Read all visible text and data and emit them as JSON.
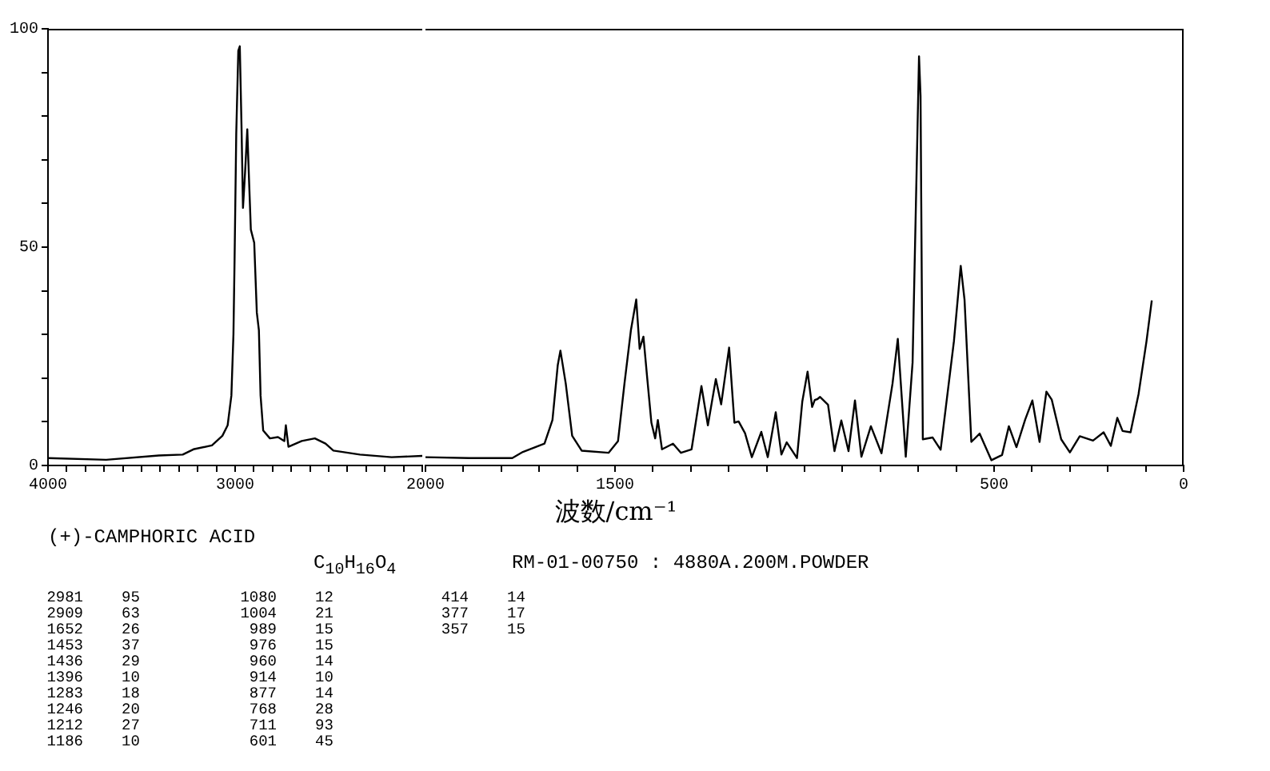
{
  "chart_data": [
    {
      "type": "line",
      "title": "(+)-CAMPHORIC ACID",
      "subtitle": "C$_{10}$H$_{16}$O$_{4}$",
      "annotations": [
        "RM-01-00750 : 4880A.200M.POWDER",
        "2981 95",
        "2909 63",
        "1652 26",
        "1453 37",
        "1436 29",
        "1396 10",
        "1283 18",
        "1246 20",
        "1212 27",
        "1186 10",
        "1080 12",
        "1004 21",
        "989 15",
        "976 15",
        "960 14",
        "914 10",
        "877 14",
        "768 28",
        "711 93",
        "601 45",
        "414 14",
        "377 17",
        "357 15"
      ],
      "xlim": [
        4000,
        2000
      ],
      "xticks": [
        4000,
        {
          "value": 3900,
          "label": null
        },
        {
          "value": 3800,
          "label": null
        },
        {
          "value": 3700,
          "label": null
        },
        {
          "value": 3600,
          "label": null
        },
        {
          "value": 3500,
          "label": null
        },
        {
          "value": 3400,
          "label": null
        },
        {
          "value": 3300,
          "label": null
        },
        {
          "value": 3200,
          "label": null
        },
        {
          "value": 3100,
          "label": null
        },
        3000,
        {
          "value": 2900,
          "label": null
        },
        {
          "value": 2800,
          "label": null
        },
        {
          "value": 2700,
          "label": null
        },
        {
          "value": 2600,
          "label": null
        },
        {
          "value": 2500,
          "label": null
        },
        {
          "value": 2400,
          "label": null
        },
        {
          "value": 2300,
          "label": null
        },
        {
          "value": 2200,
          "label": null
        },
        {
          "value": 2100,
          "label": null
        },
        {
          "value": 2000,
          "label": null
        }
      ],
      "ylim": [
        0,
        100
      ],
      "yticks": [
        0,
        {
          "value": 10,
          "label": null
        },
        {
          "value": 20,
          "label": null
        },
        {
          "value": 30,
          "label": null
        },
        {
          "value": 40,
          "label": null
        },
        50,
        {
          "value": 60,
          "label": null
        },
        {
          "value": 70,
          "label": null
        },
        {
          "value": 80,
          "label": null
        },
        {
          "value": 90,
          "label": null
        },
        100
      ],
      "grid": false,
      "legend": false,
      "marker": "none",
      "line_style": "solid",
      "series": [
        {
          "color": "#000000",
          "x": [
            4000,
            3689,
            3407,
            3280,
            3223,
            3124,
            3068,
            3040,
            3020,
            3009,
            3003,
            2994,
            2983,
            2975,
            2966,
            2958,
            2947,
            2935,
            2927,
            2916,
            2898,
            2884,
            2873,
            2864,
            2850,
            2814,
            2771,
            2737,
            2729,
            2715,
            2644,
            2574,
            2517,
            2475,
            2333,
            2164,
            2000
          ],
          "values": [
            1.7,
            1.3,
            2.3,
            2.5,
            3.7,
            4.6,
            6.8,
            9.2,
            16,
            30,
            47,
            76,
            95,
            96,
            78,
            59,
            67,
            77,
            67,
            54,
            51,
            35,
            31,
            16,
            8,
            6.2,
            6.5,
            5.6,
            9.2,
            4.3,
            5.6,
            6.2,
            5,
            3.4,
            2.5,
            1.9,
            2.2
          ]
        }
      ]
    },
    {
      "type": "line",
      "xlabel": "波数/cm⁻¹",
      "xlim": [
        2000,
        0
      ],
      "xticks": [
        2000,
        {
          "value": 1900,
          "label": null
        },
        {
          "value": 1800,
          "label": null
        },
        {
          "value": 1700,
          "label": null
        },
        {
          "value": 1600,
          "label": null
        },
        1500,
        {
          "value": 1400,
          "label": null
        },
        {
          "value": 1300,
          "label": null
        },
        {
          "value": 1200,
          "label": null
        },
        {
          "value": 1100,
          "label": null
        },
        {
          "value": 1000,
          "label": null
        },
        {
          "value": 900,
          "label": null
        },
        {
          "value": 800,
          "label": null
        },
        {
          "value": 700,
          "label": null
        },
        {
          "value": 600,
          "label": null
        },
        500,
        {
          "value": 400,
          "label": null
        },
        {
          "value": 300,
          "label": null
        },
        {
          "value": 200,
          "label": null
        },
        {
          "value": 100,
          "label": null
        },
        0
      ],
      "ylim": [
        0,
        100
      ],
      "yticks": [
        0,
        50,
        100
      ],
      "tick_labels": "x",
      "grid": false,
      "legend": false,
      "marker": "none",
      "line_style": "solid",
      "series": [
        {
          "color": "#000000",
          "x": [
            2000,
            1884,
            1771,
            1743,
            1686,
            1665,
            1651,
            1644,
            1630,
            1613,
            1588,
            1517,
            1492,
            1475,
            1458,
            1444,
            1435,
            1425,
            1415,
            1404,
            1394,
            1387,
            1376,
            1347,
            1326,
            1298,
            1272,
            1255,
            1234,
            1220,
            1199,
            1185,
            1174,
            1157,
            1139,
            1114,
            1097,
            1076,
            1061,
            1047,
            1020,
            1006,
            992,
            980,
            973,
            966,
            959,
            938,
            921,
            903,
            884,
            867,
            850,
            825,
            797,
            768,
            754,
            733,
            715,
            698,
            694,
            688,
            662,
            641,
            606,
            588,
            578,
            560,
            538,
            507,
            479,
            461,
            441,
            418,
            399,
            380,
            362,
            348,
            323,
            300,
            274,
            239,
            211,
            192,
            175,
            161,
            140,
            119,
            98,
            84
          ],
          "values": [
            1.9,
            1.7,
            1.7,
            3.1,
            5,
            10.4,
            23,
            26.3,
            18.8,
            6.8,
            3.4,
            2.9,
            5.6,
            18.8,
            31,
            38,
            26.7,
            29.5,
            20,
            9.8,
            6.2,
            10.4,
            3.7,
            5,
            2.9,
            3.7,
            18.2,
            9.2,
            19.8,
            14,
            27,
            9.8,
            10.1,
            7.4,
            1.9,
            7.7,
            1.9,
            12.2,
            2.5,
            5.3,
            1.7,
            14.6,
            21.5,
            13.4,
            15,
            15.2,
            15.7,
            13.9,
            3.3,
            10.3,
            3.3,
            14.9,
            2,
            9,
            2.8,
            18.7,
            29,
            2,
            23.6,
            93.7,
            84.6,
            6,
            6.4,
            3.6,
            28.4,
            45.7,
            38,
            5.4,
            7.3,
            1.2,
            2.4,
            9,
            4.2,
            10.5,
            14.9,
            5.4,
            16.9,
            15.1,
            6,
            3,
            6.7,
            5.7,
            7.6,
            4.5,
            10.9,
            7.9,
            7.6,
            16.3,
            28.4,
            37.8
          ]
        }
      ]
    }
  ]
}
